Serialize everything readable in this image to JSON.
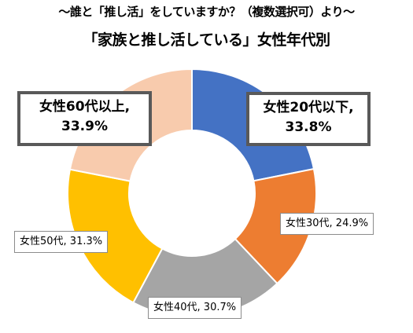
{
  "chart_data": {
    "type": "pie",
    "subtitle": "～誰と「推し活」をしていますか？（複数選択可）より～",
    "title": "「家族と推し活している」女性年代別",
    "categories": [
      "女性20代以下",
      "女性30代",
      "女性40代",
      "女性50代",
      "女性60代以上"
    ],
    "values": [
      33.8,
      24.9,
      30.7,
      31.3,
      33.9
    ],
    "colors": [
      "#4472c4",
      "#ed7d31",
      "#a5a5a5",
      "#ffc000",
      "#f8cbad"
    ],
    "data_labels": [
      {
        "line1": "女性20代以下,",
        "line2": "33.8%"
      },
      {
        "text": "女性30代, 24.9%"
      },
      {
        "text": "女性40代, 30.7%"
      },
      {
        "text": "女性50代, 31.3%"
      },
      {
        "line1": "女性60代以上,",
        "line2": "33.9%"
      }
    ],
    "chart_style": "donut",
    "legend": "none"
  }
}
